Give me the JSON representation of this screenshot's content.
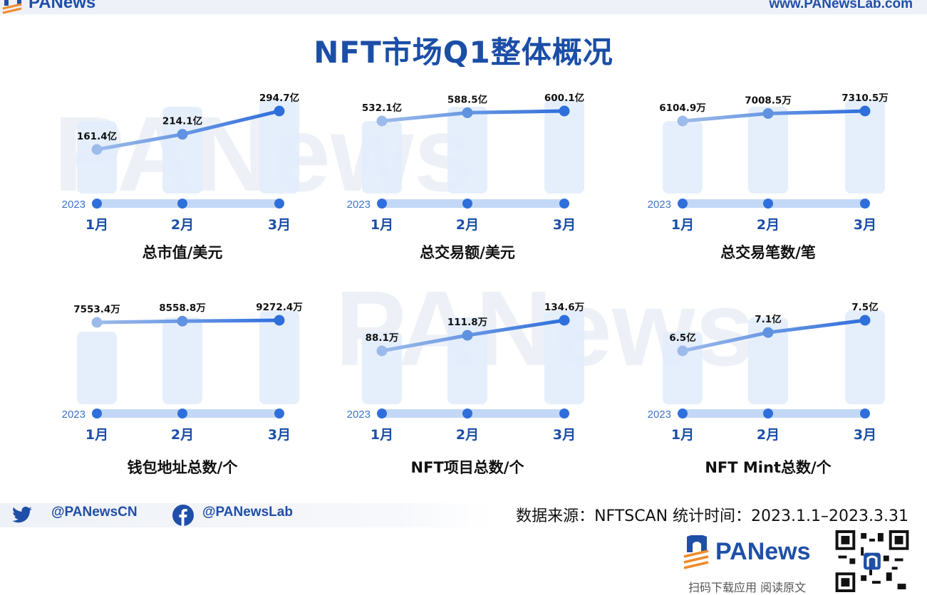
{
  "header": {
    "brand": "PANews",
    "site": "www.PANewsLab.com",
    "title": "NFT市场Q1整体概况",
    "watermark": "PANews"
  },
  "footer": {
    "twitter_handle": "@PANewsCN",
    "facebook_handle": "@PANewsLab",
    "source": "数据来源：NFTSCAN 统计时间：2023.1.1–2023.3.31",
    "brand": "PANews",
    "download": "扫码下载应用 阅读原文"
  },
  "colors": {
    "title": "#1b4ea6",
    "line": "#4f86dc",
    "line_start": "#9dbbea",
    "bar": "#e1ecfb",
    "timeline": "#c3d8f6",
    "dot": "#2f6fdc",
    "year": "#3d74c9"
  },
  "chart_data": [
    {
      "type": "line",
      "title": "总市值/美元",
      "year": "2023",
      "categories": [
        "1月",
        "2月",
        "3月"
      ],
      "values": [
        161.4,
        214.1,
        294.7
      ],
      "labels": [
        "161.4亿",
        "214.1亿",
        "294.7亿"
      ],
      "unit": "亿"
    },
    {
      "type": "line",
      "title": "总交易额/美元",
      "year": "2023",
      "categories": [
        "1月",
        "2月",
        "3月"
      ],
      "values": [
        532.1,
        588.5,
        600.1
      ],
      "labels": [
        "532.1亿",
        "588.5亿",
        "600.1亿"
      ],
      "unit": "亿"
    },
    {
      "type": "line",
      "title": "总交易笔数/笔",
      "year": "2023",
      "categories": [
        "1月",
        "2月",
        "3月"
      ],
      "values": [
        6104.9,
        7008.5,
        7310.5
      ],
      "labels": [
        "6104.9万",
        "7008.5万",
        "7310.5万"
      ],
      "unit": "万"
    },
    {
      "type": "line",
      "title": "钱包地址总数/个",
      "year": "2023",
      "categories": [
        "1月",
        "2月",
        "3月"
      ],
      "values": [
        7553.4,
        8558.8,
        9272.4
      ],
      "labels": [
        "7553.4万",
        "8558.8万",
        "9272.4万"
      ],
      "unit": "万"
    },
    {
      "type": "line",
      "title": "NFT项目总数/个",
      "year": "2023",
      "categories": [
        "1月",
        "2月",
        "3月"
      ],
      "values": [
        88.1,
        111.8,
        134.6
      ],
      "labels": [
        "88.1万",
        "111.8万",
        "134.6万"
      ],
      "unit": "万"
    },
    {
      "type": "line",
      "title": "NFT Mint总数/个",
      "year": "2023",
      "categories": [
        "1月",
        "2月",
        "3月"
      ],
      "values": [
        6.5,
        7.1,
        7.5
      ],
      "labels": [
        "6.5亿",
        "7.1亿",
        "7.5亿"
      ],
      "unit": "亿"
    }
  ]
}
